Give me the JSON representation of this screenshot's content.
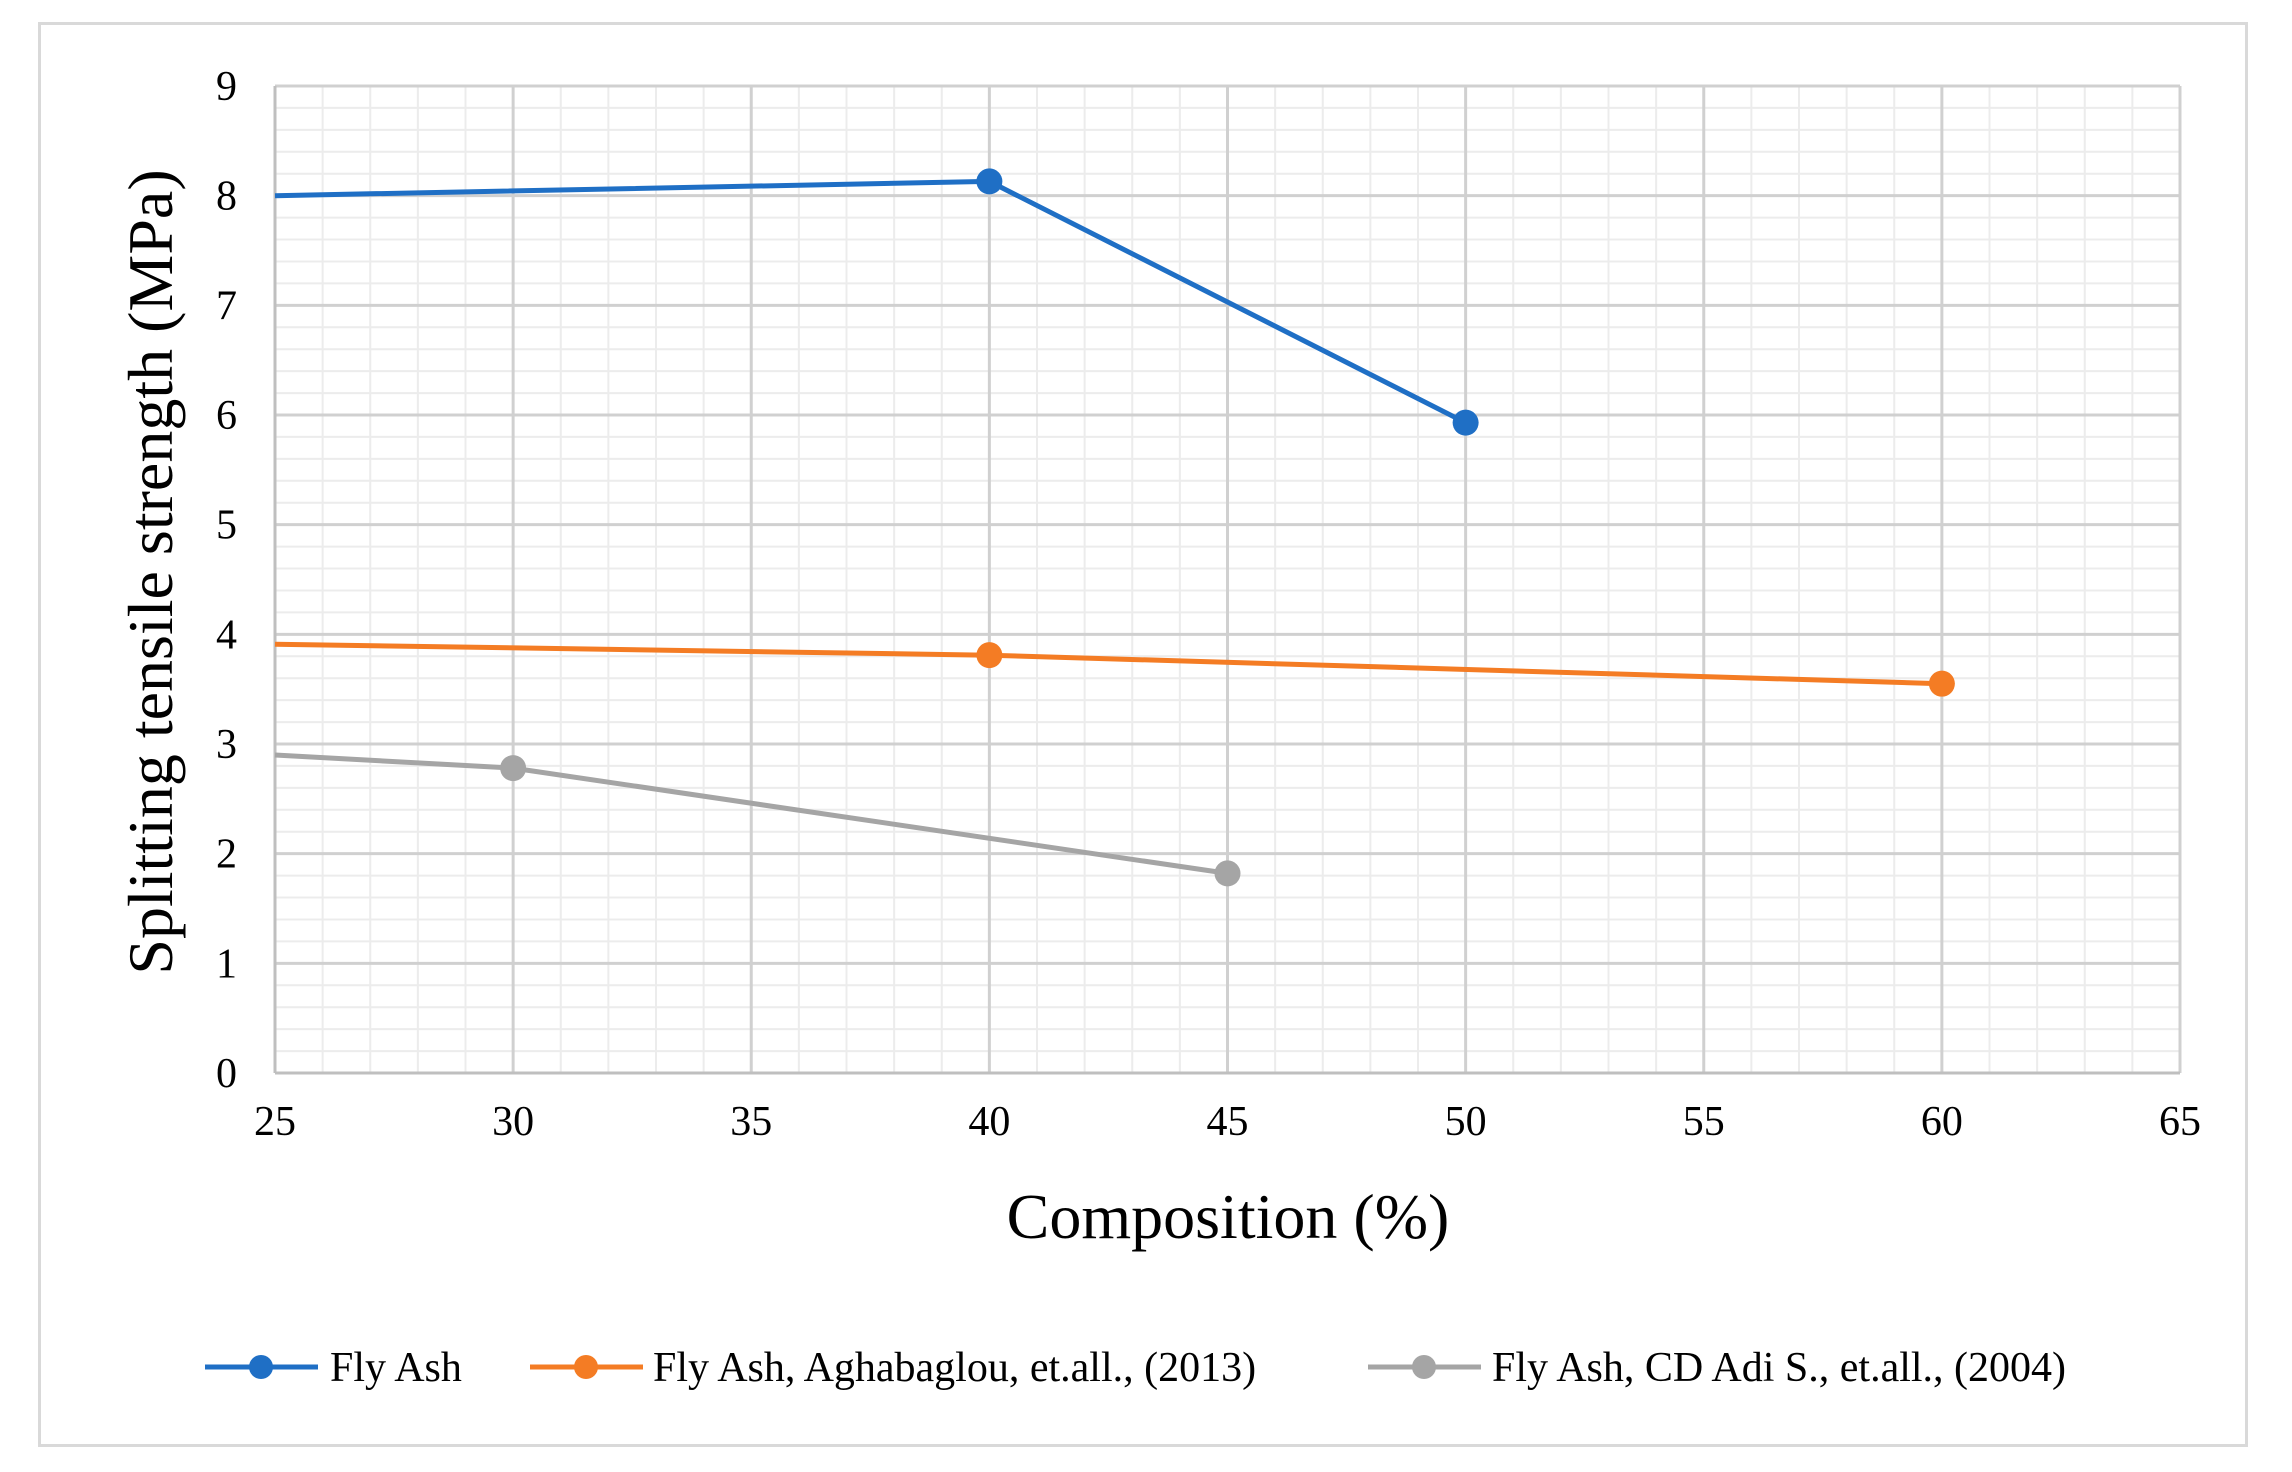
{
  "chart_data": {
    "type": "line",
    "title": "",
    "xlabel": "Composition (%)",
    "ylabel": "Splitting tensile strength (MPa)",
    "xlim": [
      25,
      65
    ],
    "ylim": [
      0,
      9
    ],
    "xticks": [
      25,
      30,
      35,
      40,
      45,
      50,
      55,
      60,
      65
    ],
    "yticks": [
      0,
      1,
      2,
      3,
      4,
      5,
      6,
      7,
      8,
      9
    ],
    "x_major_step": 5,
    "x_minor_step": 1,
    "y_major_step": 1,
    "y_minor_step": 0.2,
    "grid": true,
    "legend_position": "bottom",
    "series": [
      {
        "name": "Fly Ash",
        "color": "#1f6fc5",
        "points": [
          [
            40,
            8.13
          ],
          [
            50,
            5.93
          ]
        ],
        "line_start": [
          25,
          8.0
        ]
      },
      {
        "name": "Fly Ash, Aghabaglou, et.all., (2013)",
        "color": "#f47c24",
        "points": [
          [
            40,
            3.81
          ],
          [
            60,
            3.55
          ]
        ],
        "line_start": [
          25,
          3.91
        ]
      },
      {
        "name": "Fly Ash, CD Adi S., et.all., (2004)",
        "color": "#a5a5a5",
        "points": [
          [
            30,
            2.78
          ],
          [
            45,
            1.82
          ]
        ],
        "line_start": [
          25,
          2.9
        ]
      }
    ]
  }
}
